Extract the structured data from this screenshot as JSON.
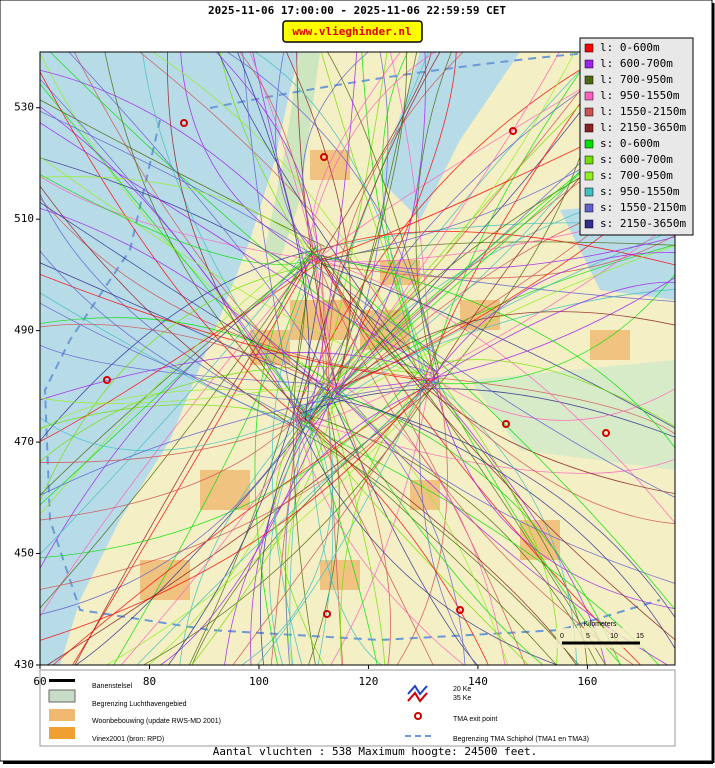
{
  "header": {
    "title": "2025-11-06 17:00:00 - 2025-11-06 22:59:59 CET",
    "link": "www.vlieghinder.nl"
  },
  "map": {
    "xlim": [
      60,
      176
    ],
    "ylim": [
      430,
      540
    ],
    "xticks": [
      60,
      80,
      100,
      120,
      140,
      160
    ],
    "yticks": [
      430,
      450,
      470,
      490,
      510,
      530
    ]
  },
  "legend": [
    {
      "label": "l: 0-600m",
      "color": "#ff0000"
    },
    {
      "label": "l: 600-700m",
      "color": "#a020f0"
    },
    {
      "label": "l: 700-950m",
      "color": "#4b6b10"
    },
    {
      "label": "l: 950-1550m",
      "color": "#ff60c0"
    },
    {
      "label": "l: 1550-2150m",
      "color": "#d05050"
    },
    {
      "label": "l: 2150-3650m",
      "color": "#8b2020"
    },
    {
      "label": "s: 0-600m",
      "color": "#00e000"
    },
    {
      "label": "s: 600-700m",
      "color": "#70e000"
    },
    {
      "label": "s: 700-950m",
      "color": "#90f020"
    },
    {
      "label": "s: 950-1550m",
      "color": "#40c0c0"
    },
    {
      "label": "s: 1550-2150m",
      "color": "#6060d0"
    },
    {
      "label": "s: 2150-3650m",
      "color": "#303090"
    }
  ],
  "scalebar": {
    "title": "Kilometers",
    "ticks": [
      0,
      5,
      10,
      15
    ]
  },
  "key": {
    "runways": "Banenstelsel",
    "airport": "Begrenzing Luchthavengebied",
    "housing": "Woonbebouwing (update RWS-MD 2001)",
    "vinex": "Vinex2001 (bron: RPD)",
    "ke20": "20 Ke",
    "ke35": "35 Ke",
    "exit": "TMA exit point",
    "tma": "Begrenzing TMA Schiphol  (TMA1 en TMA3)"
  },
  "footer": "Aantal vluchten : 538 Maximum hoogte: 24500 feet."
}
